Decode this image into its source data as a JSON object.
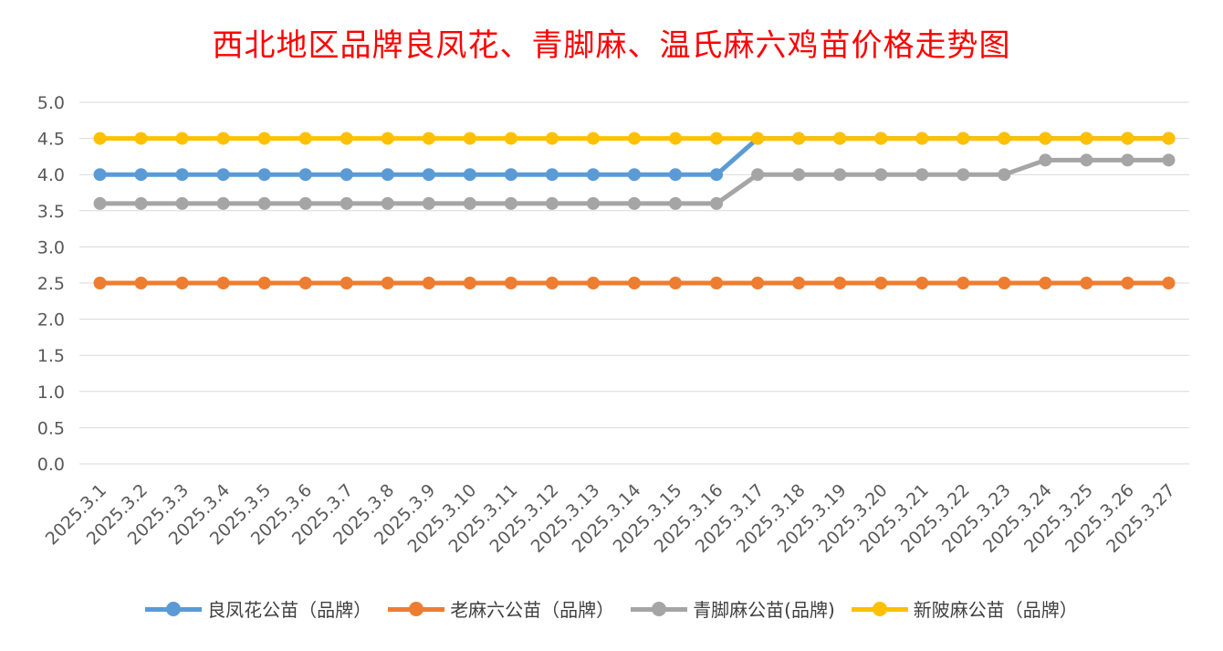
{
  "chart_data": {
    "type": "line",
    "title": "西北地区品牌良凤花、青脚麻、温氏麻六鸡苗价格走势图",
    "categories": [
      "2025.3.1",
      "2025.3.2",
      "2025.3.3",
      "2025.3.4",
      "2025.3.5",
      "2025.3.6",
      "2025.3.7",
      "2025.3.8",
      "2025.3.9",
      "2025.3.10",
      "2025.3.11",
      "2025.3.12",
      "2025.3.13",
      "2025.3.14",
      "2025.3.15",
      "2025.3.16",
      "2025.3.17",
      "2025.3.18",
      "2025.3.19",
      "2025.3.20",
      "2025.3.21",
      "2025.3.22",
      "2025.3.23",
      "2025.3.24",
      "2025.3.25",
      "2025.3.26",
      "2025.3.27"
    ],
    "ylim": [
      0,
      5
    ],
    "yticks": [
      "0.0",
      "0.5",
      "1.0",
      "1.5",
      "2.0",
      "2.5",
      "3.0",
      "3.5",
      "4.0",
      "4.5",
      "5.0"
    ],
    "grid": true,
    "legend_position": "bottom",
    "series": [
      {
        "name": "良凤花公苗（品牌）",
        "color": "#5b9bd5",
        "values": [
          4,
          4,
          4,
          4,
          4,
          4,
          4,
          4,
          4,
          4,
          4,
          4,
          4,
          4,
          4,
          4,
          4.5,
          4.5,
          4.5,
          4.5,
          4.5,
          4.5,
          4.5,
          4.5,
          4.5,
          4.5,
          4.5
        ]
      },
      {
        "name": "老麻六公苗（品牌）",
        "color": "#ed7d31",
        "values": [
          2.5,
          2.5,
          2.5,
          2.5,
          2.5,
          2.5,
          2.5,
          2.5,
          2.5,
          2.5,
          2.5,
          2.5,
          2.5,
          2.5,
          2.5,
          2.5,
          2.5,
          2.5,
          2.5,
          2.5,
          2.5,
          2.5,
          2.5,
          2.5,
          2.5,
          2.5,
          2.5
        ]
      },
      {
        "name": "青脚麻公苗(品牌)",
        "color": "#a5a5a5",
        "values": [
          3.6,
          3.6,
          3.6,
          3.6,
          3.6,
          3.6,
          3.6,
          3.6,
          3.6,
          3.6,
          3.6,
          3.6,
          3.6,
          3.6,
          3.6,
          3.6,
          4,
          4,
          4,
          4,
          4,
          4,
          4,
          4.2,
          4.2,
          4.2,
          4.2
        ]
      },
      {
        "name": "新陂麻公苗（品牌）",
        "color": "#ffc000",
        "values": [
          4.5,
          4.5,
          4.5,
          4.5,
          4.5,
          4.5,
          4.5,
          4.5,
          4.5,
          4.5,
          4.5,
          4.5,
          4.5,
          4.5,
          4.5,
          4.5,
          4.5,
          4.5,
          4.5,
          4.5,
          4.5,
          4.5,
          4.5,
          4.5,
          4.5,
          4.5,
          4.5
        ]
      }
    ]
  }
}
